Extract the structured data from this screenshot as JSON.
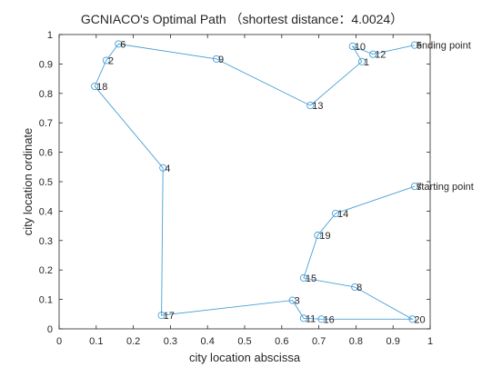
{
  "chart_data": {
    "type": "line",
    "title": "GCNIACO's Optimal Path （shortest distance：4.0024）",
    "xlabel": "city location abscissa",
    "ylabel": "city location ordinate",
    "xlim": [
      0,
      1
    ],
    "ylim": [
      0,
      1
    ],
    "xticks": [
      "0",
      "0.1",
      "0.2",
      "0.3",
      "0.4",
      "0.5",
      "0.6",
      "0.7",
      "0.8",
      "0.9",
      "1"
    ],
    "yticks": [
      "0",
      "0.1",
      "0.2",
      "0.3",
      "0.4",
      "0.5",
      "0.6",
      "0.7",
      "0.8",
      "0.9",
      "1"
    ],
    "grid": false,
    "line_color": "#4a9fd5",
    "cities": [
      {
        "label": "7",
        "x": 0.958,
        "y": 0.484
      },
      {
        "label": "14",
        "x": 0.745,
        "y": 0.392
      },
      {
        "label": "19",
        "x": 0.697,
        "y": 0.318
      },
      {
        "label": "15",
        "x": 0.659,
        "y": 0.173
      },
      {
        "label": "8",
        "x": 0.797,
        "y": 0.142
      },
      {
        "label": "20",
        "x": 0.952,
        "y": 0.033
      },
      {
        "label": "16",
        "x": 0.707,
        "y": 0.033
      },
      {
        "label": "11",
        "x": 0.659,
        "y": 0.036
      },
      {
        "label": "3",
        "x": 0.629,
        "y": 0.097
      },
      {
        "label": "17",
        "x": 0.276,
        "y": 0.046
      },
      {
        "label": "4",
        "x": 0.28,
        "y": 0.547
      },
      {
        "label": "18",
        "x": 0.096,
        "y": 0.824
      },
      {
        "label": "2",
        "x": 0.127,
        "y": 0.912
      },
      {
        "label": "6",
        "x": 0.16,
        "y": 0.968
      },
      {
        "label": "9",
        "x": 0.424,
        "y": 0.917
      },
      {
        "label": "13",
        "x": 0.677,
        "y": 0.759
      },
      {
        "label": "1",
        "x": 0.816,
        "y": 0.908
      },
      {
        "label": "10",
        "x": 0.791,
        "y": 0.96
      },
      {
        "label": "12",
        "x": 0.846,
        "y": 0.933
      },
      {
        "label": "5",
        "x": 0.958,
        "y": 0.964
      }
    ],
    "annotations": [
      {
        "text": "starting point",
        "x": 0.958,
        "y": 0.484
      },
      {
        "text": "ending point",
        "x": 0.958,
        "y": 0.964
      }
    ]
  }
}
